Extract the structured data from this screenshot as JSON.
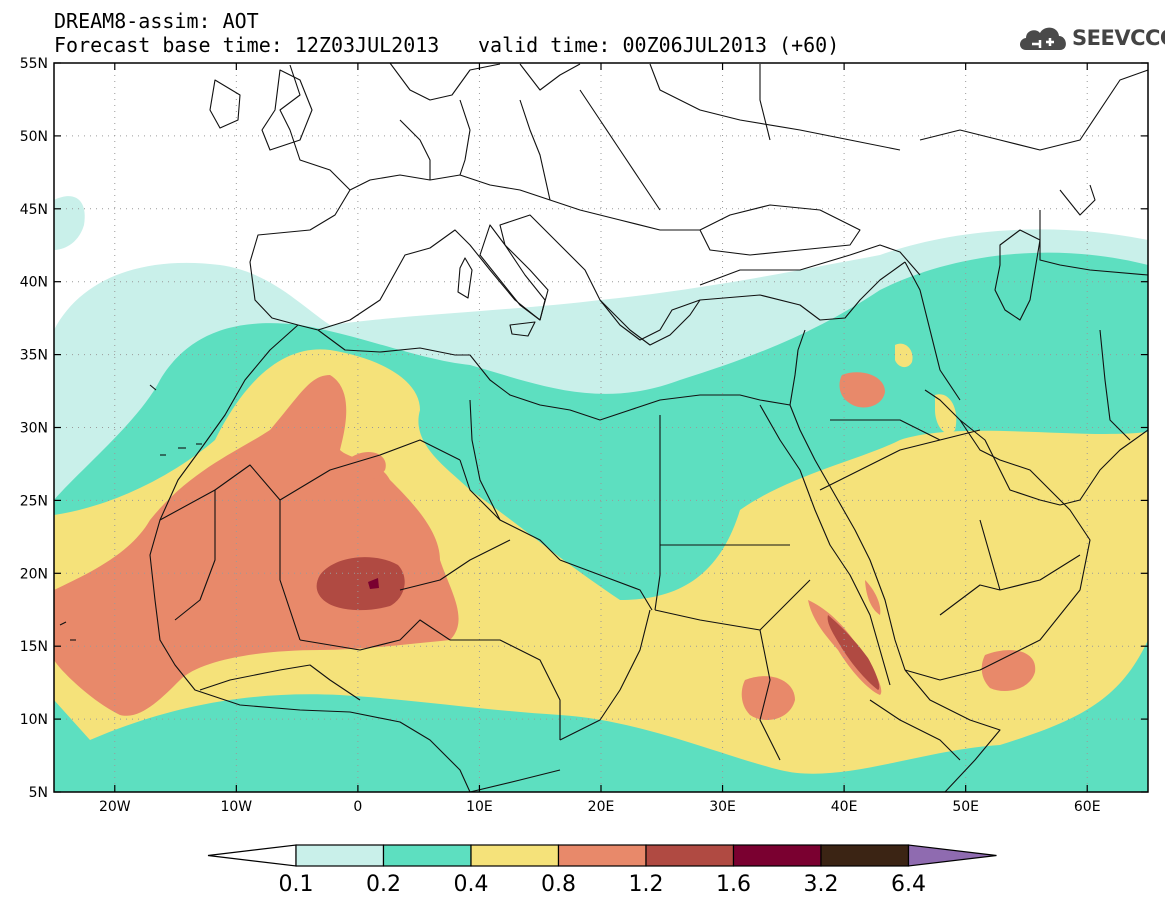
{
  "header": {
    "title_line1": "DREAM8-assim: AOT",
    "base_time": "Forecast base time: 12Z03JUL2013",
    "valid_time": "valid time: 00Z06JUL2013 (+60)"
  },
  "logo": {
    "text": "SEEVCCC",
    "icon": "cloud-icon"
  },
  "axes": {
    "lon_ticks": [
      {
        "lon": -20,
        "label": "20W"
      },
      {
        "lon": -10,
        "label": "10W"
      },
      {
        "lon": 0,
        "label": "0"
      },
      {
        "lon": 10,
        "label": "10E"
      },
      {
        "lon": 20,
        "label": "20E"
      },
      {
        "lon": 30,
        "label": "30E"
      },
      {
        "lon": 40,
        "label": "40E"
      },
      {
        "lon": 50,
        "label": "50E"
      },
      {
        "lon": 60,
        "label": "60E"
      }
    ],
    "lat_ticks": [
      {
        "lat": 55,
        "label": "55N"
      },
      {
        "lat": 50,
        "label": "50N"
      },
      {
        "lat": 45,
        "label": "45N"
      },
      {
        "lat": 40,
        "label": "40N"
      },
      {
        "lat": 35,
        "label": "35N"
      },
      {
        "lat": 30,
        "label": "30N"
      },
      {
        "lat": 25,
        "label": "25N"
      },
      {
        "lat": 20,
        "label": "20N"
      },
      {
        "lat": 15,
        "label": "15N"
      },
      {
        "lat": 10,
        "label": "10N"
      },
      {
        "lat": 5,
        "label": "5N"
      }
    ],
    "lon_range": [
      -25,
      65
    ],
    "lat_range": [
      5,
      55
    ],
    "grid": true
  },
  "colorbar": {
    "levels": [
      "0.1",
      "0.2",
      "0.4",
      "0.8",
      "1.2",
      "1.6",
      "3.2",
      "6.4"
    ],
    "colors": [
      "#ffffff",
      "#c9f0ea",
      "#5ddfc0",
      "#f5e27a",
      "#e8896a",
      "#b04a42",
      "#7a0030",
      "#3b2414",
      "#8f6bb0"
    ]
  }
}
